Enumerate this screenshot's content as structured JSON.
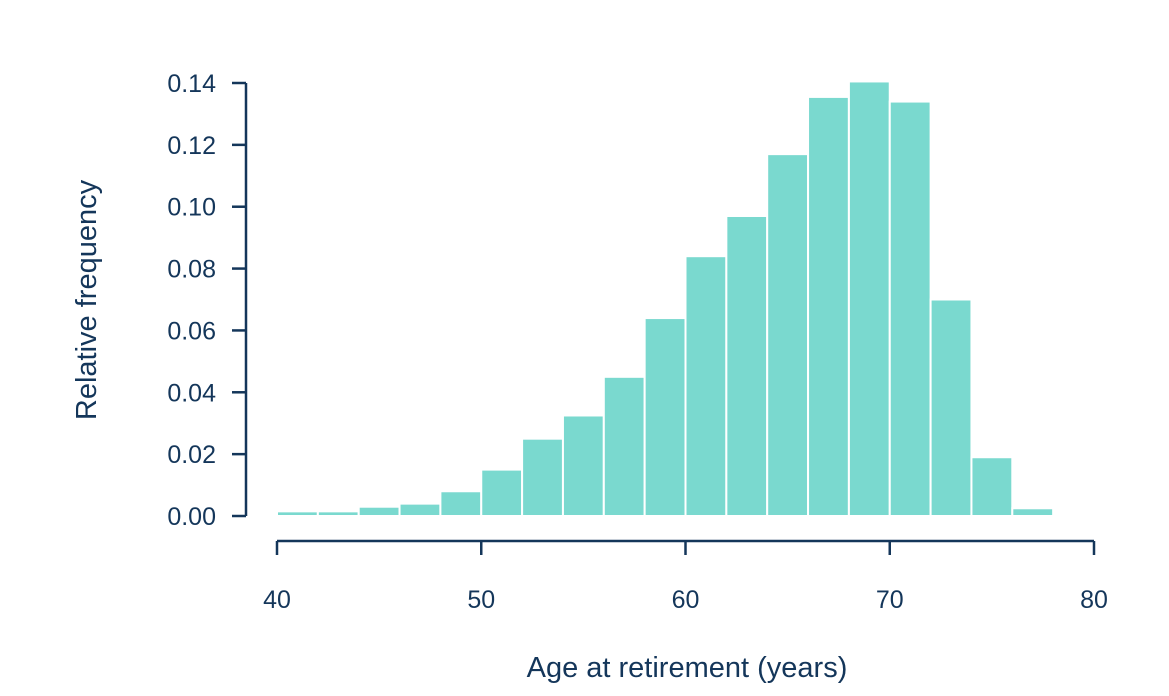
{
  "chart_data": {
    "type": "bar",
    "title": "",
    "xlabel": "Age at retirement (years)",
    "ylabel": "Relative frequency",
    "bin_width": 2,
    "bins_start": [
      40,
      42,
      44,
      46,
      48,
      50,
      52,
      54,
      56,
      58,
      60,
      62,
      64,
      66,
      68,
      70,
      72,
      74,
      76
    ],
    "values": [
      0.0015,
      0.0015,
      0.003,
      0.004,
      0.008,
      0.015,
      0.025,
      0.0325,
      0.045,
      0.064,
      0.084,
      0.097,
      0.117,
      0.1355,
      0.1405,
      0.134,
      0.07,
      0.019,
      0.0025
    ],
    "xlim": [
      40,
      80
    ],
    "ylim": [
      0,
      0.14
    ],
    "x_ticks": [
      "40",
      "50",
      "60",
      "70",
      "80"
    ],
    "y_ticks": [
      "0.00",
      "0.02",
      "0.04",
      "0.06",
      "0.08",
      "0.10",
      "0.12",
      "0.14"
    ],
    "grid": false,
    "legend": "none",
    "colors": {
      "bar": "#7ad9cf",
      "axis": "#14365a"
    }
  }
}
